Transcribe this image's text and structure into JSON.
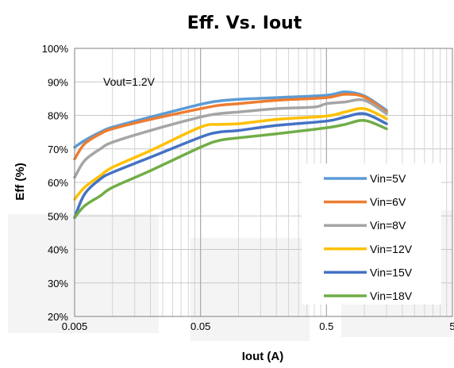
{
  "chart_data": {
    "type": "line",
    "title": "Eff. Vs. Iout",
    "xlabel": "Iout (A)",
    "ylabel": "Eff (%)",
    "x_scale": "log",
    "xlim": [
      0.005,
      5
    ],
    "ylim": [
      20,
      100
    ],
    "x_ticks": [
      "0.005",
      "0.05",
      "0.5",
      "5"
    ],
    "y_ticks": [
      "20%",
      "30%",
      "40%",
      "50%",
      "60%",
      "70%",
      "80%",
      "90%",
      "100%"
    ],
    "annotation": "Vout=1.2V",
    "legend_position": "bottom-right",
    "grid": true,
    "series": [
      {
        "name": "Vin=5V",
        "color": "#5B9BD5",
        "x": [
          0.005,
          0.006,
          0.008,
          0.01,
          0.02,
          0.05,
          0.07,
          0.1,
          0.2,
          0.5,
          0.7,
          1.0,
          1.5
        ],
        "y": [
          70.5,
          72.5,
          75.0,
          76.5,
          79.5,
          83.3,
          84.3,
          84.8,
          85.3,
          86.0,
          87.0,
          85.8,
          81.5
        ]
      },
      {
        "name": "Vin=6V",
        "color": "#ED7D31",
        "x": [
          0.005,
          0.006,
          0.008,
          0.01,
          0.02,
          0.05,
          0.07,
          0.1,
          0.2,
          0.5,
          0.7,
          1.0,
          1.5
        ],
        "y": [
          67.0,
          71.5,
          74.5,
          76.0,
          78.8,
          82.0,
          83.0,
          83.5,
          84.5,
          85.3,
          86.3,
          85.5,
          81.0
        ]
      },
      {
        "name": "Vin=8V",
        "color": "#A5A5A5",
        "x": [
          0.005,
          0.006,
          0.008,
          0.01,
          0.02,
          0.05,
          0.07,
          0.1,
          0.2,
          0.4,
          0.5,
          0.7,
          1.0,
          1.5
        ],
        "y": [
          61.5,
          66.5,
          70.0,
          72.0,
          75.5,
          79.5,
          80.5,
          81.0,
          82.0,
          82.5,
          83.5,
          84.0,
          84.5,
          80.5
        ]
      },
      {
        "name": "Vin=12V",
        "color": "#FFC000",
        "x": [
          0.005,
          0.006,
          0.008,
          0.01,
          0.02,
          0.05,
          0.07,
          0.1,
          0.2,
          0.5,
          0.7,
          1.0,
          1.5
        ],
        "y": [
          55.0,
          58.5,
          62.0,
          64.5,
          69.5,
          76.5,
          77.3,
          77.5,
          78.8,
          79.8,
          81.0,
          82.0,
          79.0
        ]
      },
      {
        "name": "Vin=15V",
        "color": "#4472C4",
        "x": [
          0.005,
          0.006,
          0.008,
          0.01,
          0.02,
          0.05,
          0.07,
          0.1,
          0.2,
          0.5,
          0.7,
          1.0,
          1.5
        ],
        "y": [
          49.5,
          56.5,
          61.0,
          63.0,
          67.5,
          73.5,
          75.0,
          75.5,
          77.0,
          78.3,
          79.5,
          80.5,
          77.5
        ]
      },
      {
        "name": "Vin=18V",
        "color": "#70AD47",
        "x": [
          0.005,
          0.006,
          0.008,
          0.01,
          0.02,
          0.05,
          0.07,
          0.1,
          0.2,
          0.5,
          0.7,
          1.0,
          1.5
        ],
        "y": [
          49.5,
          53.0,
          56.0,
          58.5,
          63.5,
          70.5,
          72.5,
          73.3,
          74.5,
          76.3,
          77.3,
          78.5,
          76.0
        ]
      }
    ]
  }
}
